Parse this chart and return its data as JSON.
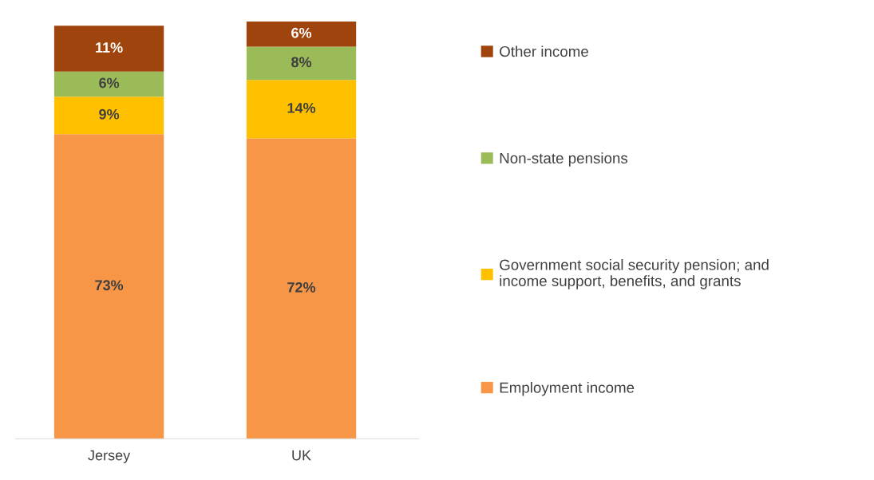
{
  "chart_data": {
    "type": "bar",
    "stacked": true,
    "legend": "right",
    "categories": [
      "Jersey",
      "UK"
    ],
    "series": [
      {
        "name": "Employment income",
        "color": "#f79646",
        "values": [
          73,
          72
        ],
        "value_labels": [
          "73%",
          "72%"
        ]
      },
      {
        "name": "Government social security pension; and\nincome support, benefits, and grants",
        "color": "#ffc000",
        "values": [
          9,
          14
        ],
        "value_labels": [
          "9%",
          "14%"
        ]
      },
      {
        "name": "Non-state pensions",
        "color": "#9bbb59",
        "values": [
          6,
          8
        ],
        "value_labels": [
          "6%",
          "8%"
        ]
      },
      {
        "name": "Other income",
        "color": "#9e440c",
        "values": [
          11,
          6
        ],
        "value_labels": [
          "11%",
          "6%"
        ]
      }
    ]
  }
}
